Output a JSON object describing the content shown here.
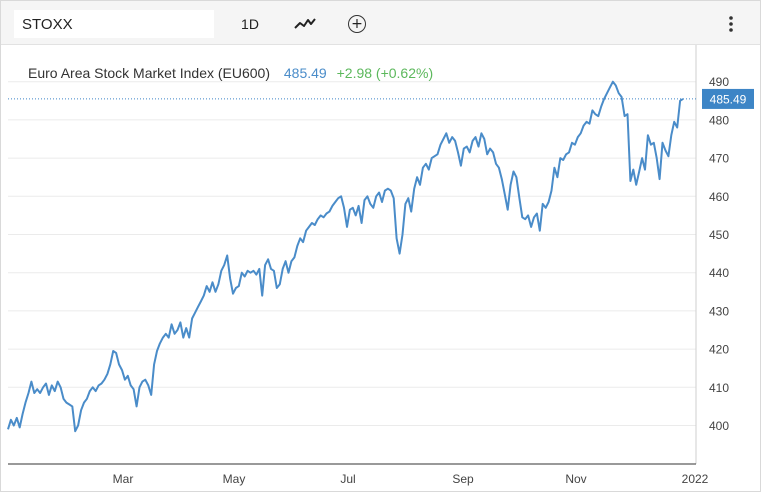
{
  "toolbar": {
    "symbol_value": "STOXX",
    "range_label": "1D"
  },
  "icons": {
    "chart_type": "line-chart-icon",
    "add": "plus-circle-icon",
    "more": "kebab-menu-icon"
  },
  "legend": {
    "name": "Euro Area Stock Market Index (EU600)",
    "last": "485.49",
    "change": "+2.98 (+0.62%)"
  },
  "colors": {
    "line": "#4a8cc9",
    "change_positive": "#5cb85c",
    "badge": "#3d85c6"
  },
  "chart_data": {
    "type": "line",
    "title": "Euro Area Stock Market Index (EU600)",
    "xlabel": "",
    "ylabel": "",
    "x_tick_labels": [
      "Mar",
      "May",
      "Jul",
      "Sep",
      "Nov",
      "2022"
    ],
    "y_ticks": [
      400,
      410,
      420,
      430,
      440,
      450,
      460,
      470,
      480,
      490
    ],
    "ylim": [
      391,
      494
    ],
    "grid": "horizontal",
    "last_value_label": "485.49",
    "last_value": 485.49,
    "series": [
      {
        "x_range": [
          "2021-01-01",
          "2021-12-31"
        ],
        "values": [
          399.0,
          401.5,
          400.0,
          402.0,
          399.5,
          403.0,
          406.0,
          408.5,
          411.5,
          408.5,
          409.5,
          408.5,
          410.0,
          411.0,
          408.0,
          410.5,
          409.0,
          411.5,
          410.0,
          407.0,
          406.0,
          405.5,
          405.0,
          398.5,
          400.0,
          404.0,
          406.0,
          407.0,
          409.0,
          410.0,
          409.0,
          410.5,
          411.0,
          412.0,
          413.5,
          416.0,
          419.5,
          419.0,
          416.0,
          414.5,
          412.0,
          413.0,
          410.5,
          409.5,
          405.0,
          410.0,
          411.5,
          412.0,
          410.5,
          408.0,
          416.0,
          419.5,
          421.5,
          423.0,
          424.0,
          423.0,
          426.5,
          424.0,
          425.0,
          427.0,
          423.0,
          425.5,
          423.0,
          428.0,
          429.5,
          431.0,
          432.5,
          434.0,
          436.5,
          435.0,
          437.5,
          435.0,
          437.0,
          440.5,
          442.0,
          444.5,
          438.5,
          434.5,
          436.0,
          436.5,
          440.0,
          439.0,
          440.5,
          440.0,
          440.5,
          439.5,
          441.0,
          434.0,
          442.0,
          443.5,
          441.0,
          440.5,
          436.0,
          437.0,
          441.0,
          443.0,
          440.0,
          443.0,
          444.0,
          447.0,
          449.0,
          448.0,
          451.0,
          452.0,
          453.0,
          452.5,
          454.0,
          455.0,
          454.5,
          455.5,
          456.0,
          457.5,
          458.5,
          459.5,
          460.0,
          457.0,
          452.0,
          456.5,
          457.0,
          455.0,
          457.5,
          453.0,
          459.0,
          460.0,
          458.0,
          457.0,
          460.0,
          461.0,
          458.5,
          461.5,
          462.0,
          461.5,
          459.5,
          449.0,
          445.0,
          450.0,
          458.0,
          459.5,
          456.0,
          462.0,
          465.0,
          463.0,
          467.5,
          468.5,
          467.0,
          470.0,
          470.5,
          471.0,
          473.5,
          475.0,
          476.5,
          474.0,
          475.5,
          474.5,
          471.5,
          468.0,
          472.5,
          473.0,
          471.5,
          474.5,
          475.5,
          473.0,
          476.5,
          475.0,
          471.0,
          472.5,
          471.5,
          468.5,
          467.5,
          464.5,
          460.5,
          456.5,
          463.0,
          466.5,
          465.0,
          459.5,
          454.5,
          454.0,
          455.0,
          452.0,
          454.5,
          455.5,
          451.0,
          458.0,
          457.0,
          458.5,
          461.5,
          467.5,
          465.0,
          470.0,
          469.5,
          471.0,
          471.5,
          474.0,
          473.5,
          475.5,
          476.5,
          478.5,
          479.5,
          479.0,
          482.5,
          481.5,
          481.0,
          483.5,
          485.5,
          487.0,
          488.5,
          490.0,
          489.0,
          487.0,
          486.0,
          481.0,
          481.5,
          464.0,
          467.0,
          463.0,
          466.5,
          470.0,
          467.0,
          476.0,
          473.5,
          474.0,
          470.0,
          464.5,
          474.0,
          472.0,
          470.5,
          476.0,
          479.5,
          478.0,
          485.0,
          485.49
        ]
      }
    ]
  }
}
